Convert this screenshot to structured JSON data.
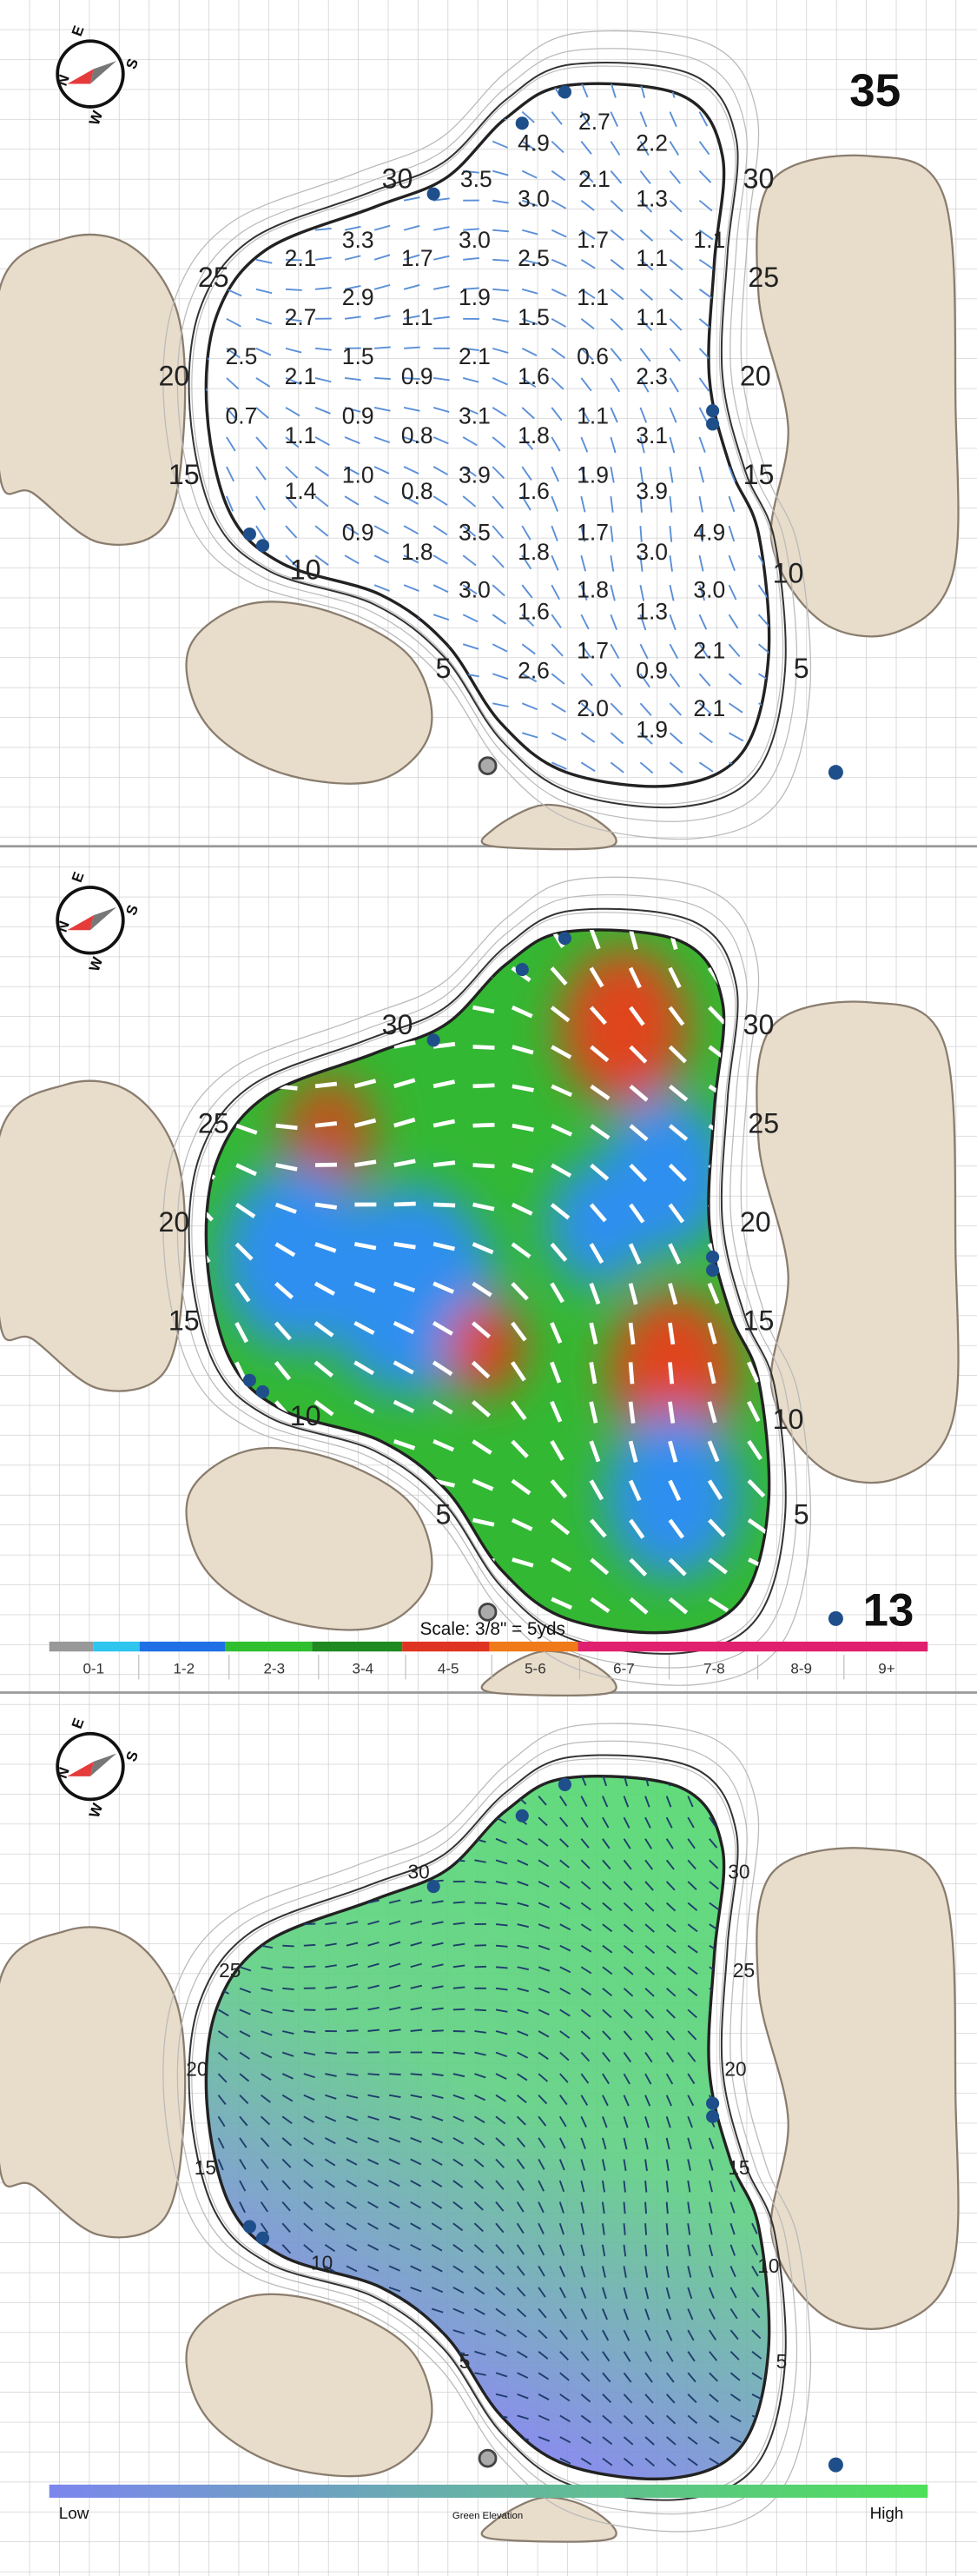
{
  "compass": [
    "N",
    "E",
    "S",
    "W"
  ],
  "panels": [
    {
      "number": "35",
      "left_distances": [
        "30",
        "25",
        "20",
        "15",
        "10",
        "5"
      ],
      "right_distances": [
        "30",
        "25",
        "20",
        "15",
        "10",
        "5"
      ],
      "slope_labels": [
        "4.9",
        "2.7",
        "2.2",
        "3.5",
        "2.1",
        "3.0",
        "1.3",
        "3.3",
        "3.0",
        "1.7",
        "1.1",
        "2.1",
        "1.7",
        "2.5",
        "1.1",
        "2.9",
        "1.9",
        "1.1",
        "2.7",
        "1.1",
        "1.5",
        "1.1",
        "2.5",
        "1.5",
        "2.1",
        "0.6",
        "2.1",
        "0.9",
        "1.6",
        "2.3",
        "0.7",
        "0.9",
        "3.1",
        "1.1",
        "1.1",
        "0.8",
        "1.8",
        "3.1",
        "1.0",
        "3.9",
        "1.9",
        "1.4",
        "0.8",
        "1.6",
        "3.9",
        "0.9",
        "3.5",
        "1.7",
        "4.9",
        "1.8",
        "1.8",
        "3.0",
        "3.0",
        "1.8",
        "3.0",
        "1.6",
        "1.3",
        "1.7",
        "2.1",
        "2.6",
        "0.9",
        "2.0",
        "2.1",
        "1.9"
      ]
    },
    {
      "number": "13",
      "left_distances": [
        "30",
        "25",
        "20",
        "15",
        "10",
        "5"
      ],
      "right_distances": [
        "30",
        "25",
        "20",
        "15",
        "10",
        "5"
      ],
      "scale_text": "Scale: 3/8\" = 5yds",
      "slope_ranges": [
        "0-1",
        "1-2",
        "2-3",
        "3-4",
        "4-5",
        "5-6",
        "6-7",
        "7-8",
        "8-9",
        "9+"
      ]
    },
    {
      "left_distances": [
        "30",
        "25",
        "20",
        "15",
        "10",
        "5"
      ],
      "right_distances": [
        "30",
        "25",
        "20",
        "15",
        "10",
        "5"
      ],
      "elevation_low": "Low",
      "elevation_title": "Green Elevation",
      "elevation_high": "High"
    }
  ]
}
